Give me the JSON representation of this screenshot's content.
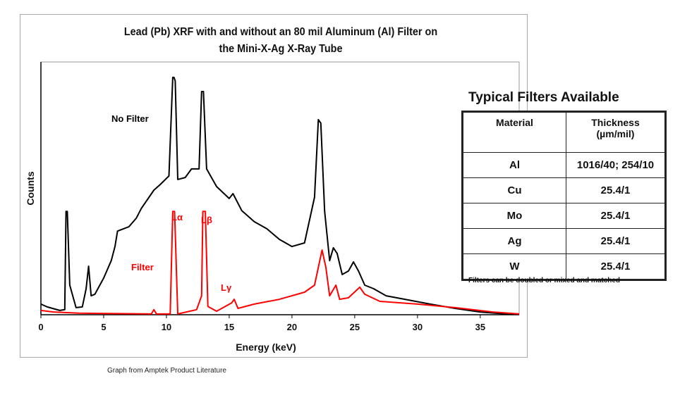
{
  "chart_data": {
    "type": "line",
    "title": "Lead (Pb) XRF with and without an 80 mil Aluminum (Al) Filter on\nthe Mini-X-Ag X-Ray Tube",
    "xlabel": "Energy (keV)",
    "ylabel": "Counts",
    "xlim": [
      0,
      38.1
    ],
    "ylim": [
      0,
      100
    ],
    "xticks": [
      0,
      5,
      10,
      15,
      20,
      25,
      30,
      35
    ],
    "grid": false,
    "series": [
      {
        "name": "No Filter",
        "color": "#000000",
        "x": [
          0,
          0.5,
          1.5,
          1.9,
          2.0,
          2.1,
          2.3,
          2.8,
          3.3,
          3.6,
          3.8,
          4.0,
          4.3,
          5.0,
          5.6,
          5.9,
          6.1,
          7,
          7.6,
          8,
          9,
          9.5,
          10.2,
          10.5,
          10.6,
          10.7,
          10.9,
          11.5,
          12,
          12.6,
          12.8,
          12.95,
          13.2,
          14,
          15,
          15.3,
          16,
          17,
          18,
          19,
          20,
          21,
          21.8,
          22.1,
          22.3,
          22.6,
          23.0,
          23.3,
          23.6,
          24,
          24.5,
          24.9,
          25.3,
          25.8,
          26.5,
          27.5,
          29,
          31,
          33,
          35,
          37,
          38.1
        ],
        "y": [
          4.2,
          3.1,
          1.7,
          2.0,
          40.9,
          40.9,
          11.7,
          2.8,
          3.1,
          10.3,
          19.2,
          7.5,
          8.1,
          14.5,
          21.4,
          27.0,
          33.1,
          34.8,
          38.2,
          42.1,
          49.3,
          51.5,
          54.9,
          93.9,
          93.9,
          92.5,
          53.5,
          54.3,
          57.7,
          57.7,
          88.3,
          88.3,
          57.7,
          50.7,
          46.0,
          47.9,
          41.2,
          36.8,
          34.0,
          29.8,
          27.0,
          28.4,
          46.5,
          77.2,
          75.8,
          41.0,
          21.4,
          26.5,
          24.2,
          15.9,
          17.3,
          20.9,
          17.3,
          11.7,
          10.3,
          7.5,
          6.1,
          4.2,
          2.5,
          1.1,
          0.3,
          0.3
        ]
      },
      {
        "name": "Filter",
        "color": "#ff0000",
        "x": [
          0,
          1,
          3,
          8.8,
          9.0,
          9.2,
          10.3,
          10.5,
          10.65,
          10.9,
          12.4,
          12.8,
          12.9,
          13.1,
          13.3,
          14,
          15.2,
          15.4,
          15.7,
          17,
          19,
          21,
          21.8,
          22.4,
          22.7,
          23.0,
          23.5,
          23.8,
          24.5,
          25.4,
          25.8,
          27,
          30,
          33,
          36,
          38.1
        ],
        "y": [
          1.7,
          1.1,
          0.6,
          0.3,
          2.0,
          0.3,
          0.3,
          40.9,
          40.9,
          0.3,
          2.0,
          7.5,
          40.9,
          40.9,
          3.3,
          1.4,
          4.7,
          6.1,
          2.5,
          4.2,
          6.1,
          8.9,
          11.7,
          25.6,
          18.7,
          7.5,
          11.7,
          6.1,
          6.7,
          10.9,
          8.1,
          5.3,
          4.2,
          2.8,
          1.1,
          0.3
        ]
      }
    ],
    "annotations": [
      {
        "text": "No Filter",
        "color": "#000000"
      },
      {
        "text": "Filter",
        "color": "#ff0000"
      },
      {
        "text": "Lα",
        "color": "#ff0000"
      },
      {
        "text": "Lβ",
        "color": "#ff0000"
      },
      {
        "text": "Lγ",
        "color": "#ff0000"
      }
    ]
  },
  "filters_table": {
    "title": "Typical Filters Available",
    "headers": [
      "Material",
      "Thickness\n(µm/mil)"
    ],
    "rows": [
      [
        "Al",
        "1016/40; 254/10"
      ],
      [
        "Cu",
        "25.4/1"
      ],
      [
        "Mo",
        "25.4/1"
      ],
      [
        "Ag",
        "25.4/1"
      ],
      [
        "W",
        "25.4/1"
      ]
    ],
    "note": "Filters can be doubled or mixed and matched"
  },
  "caption": "Graph from Amptek Product Literature"
}
